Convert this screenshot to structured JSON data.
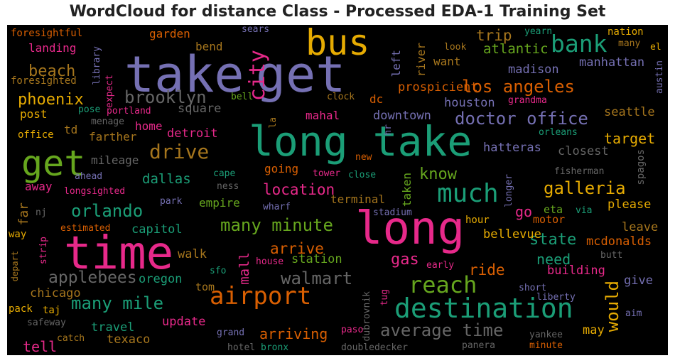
{
  "title": "WordCloud for distance Class - Processed EDA-1 Training Set",
  "colors": {
    "purple": "#7570b3",
    "teal": "#1b9e77",
    "pink": "#e7298a",
    "orange": "#d95f02",
    "green": "#66a61e",
    "gold": "#e6ab02",
    "brown": "#a6761d",
    "gray": "#666666"
  },
  "words": [
    {
      "text": "take",
      "color": "purple"
    },
    {
      "text": "get",
      "color": "purple"
    },
    {
      "text": "long take",
      "color": "teal"
    },
    {
      "text": "long",
      "color": "pink"
    },
    {
      "text": "time",
      "color": "pink"
    },
    {
      "text": "bus",
      "color": "gold"
    },
    {
      "text": "get",
      "color": "green"
    },
    {
      "text": "destination",
      "color": "teal"
    },
    {
      "text": "airport",
      "color": "orange"
    },
    {
      "text": "much",
      "color": "teal"
    },
    {
      "text": "bank",
      "color": "teal"
    },
    {
      "text": "reach",
      "color": "green"
    },
    {
      "text": "city",
      "color": "pink"
    },
    {
      "text": "drive",
      "color": "brown"
    },
    {
      "text": "doctor office",
      "color": "purple"
    },
    {
      "text": "los angeles",
      "color": "orange"
    },
    {
      "text": "average time",
      "color": "gray"
    },
    {
      "text": "many minute",
      "color": "green"
    },
    {
      "text": "walmart",
      "color": "gray"
    },
    {
      "text": "many mile",
      "color": "teal"
    },
    {
      "text": "orlando",
      "color": "teal"
    },
    {
      "text": "brooklyn",
      "color": "gray"
    },
    {
      "text": "galleria",
      "color": "gold"
    },
    {
      "text": "would",
      "color": "gold"
    },
    {
      "text": "applebees",
      "color": "gray"
    },
    {
      "text": "beach",
      "color": "brown"
    },
    {
      "text": "phoenix",
      "color": "gold"
    },
    {
      "text": "state",
      "color": "teal"
    },
    {
      "text": "location",
      "color": "pink"
    },
    {
      "text": "arrive",
      "color": "orange"
    },
    {
      "text": "ride",
      "color": "orange"
    },
    {
      "text": "trip",
      "color": "brown"
    },
    {
      "text": "atlantic",
      "color": "green"
    },
    {
      "text": "target",
      "color": "gold"
    },
    {
      "text": "know",
      "color": "green"
    },
    {
      "text": "gas",
      "color": "pink"
    },
    {
      "text": "need",
      "color": "teal"
    },
    {
      "text": "arriving",
      "color": "orange"
    },
    {
      "text": "dallas",
      "color": "teal"
    },
    {
      "text": "tell",
      "color": "pink"
    },
    {
      "text": "mall",
      "color": "pink"
    },
    {
      "text": "go",
      "color": "pink"
    },
    {
      "text": "prospicient",
      "color": "orange"
    },
    {
      "text": "manhattan",
      "color": "purple"
    },
    {
      "text": "madison",
      "color": "purple"
    },
    {
      "text": "houston",
      "color": "purple"
    },
    {
      "text": "downtown",
      "color": "purple"
    },
    {
      "text": "seattle",
      "color": "brown"
    },
    {
      "text": "hatteras",
      "color": "purple"
    },
    {
      "text": "closest",
      "color": "gray"
    },
    {
      "text": "square",
      "color": "gray"
    },
    {
      "text": "detroit",
      "color": "pink"
    },
    {
      "text": "capitol",
      "color": "teal"
    },
    {
      "text": "oregon",
      "color": "teal"
    },
    {
      "text": "station",
      "color": "green"
    },
    {
      "text": "walk",
      "color": "brown"
    },
    {
      "text": "building",
      "color": "pink"
    },
    {
      "text": "mcdonalds",
      "color": "orange"
    },
    {
      "text": "bellevue",
      "color": "gold"
    },
    {
      "text": "please",
      "color": "gold"
    },
    {
      "text": "leave",
      "color": "brown"
    },
    {
      "text": "give",
      "color": "purple"
    },
    {
      "text": "may",
      "color": "gold"
    },
    {
      "text": "travel",
      "color": "teal"
    },
    {
      "text": "texaco",
      "color": "brown"
    },
    {
      "text": "update",
      "color": "pink"
    },
    {
      "text": "chicago",
      "color": "brown"
    },
    {
      "text": "far",
      "color": "brown"
    },
    {
      "text": "away",
      "color": "pink"
    },
    {
      "text": "post",
      "color": "gold"
    },
    {
      "text": "td",
      "color": "brown"
    },
    {
      "text": "home",
      "color": "pink"
    },
    {
      "text": "farther",
      "color": "brown"
    },
    {
      "text": "mileage",
      "color": "gray"
    },
    {
      "text": "empire",
      "color": "green"
    },
    {
      "text": "going",
      "color": "orange"
    },
    {
      "text": "terminal",
      "color": "brown"
    },
    {
      "text": "taken",
      "color": "green"
    },
    {
      "text": "river",
      "color": "brown"
    },
    {
      "text": "left",
      "color": "purple"
    },
    {
      "text": "want",
      "color": "brown"
    },
    {
      "text": "garden",
      "color": "orange"
    },
    {
      "text": "bend",
      "color": "brown"
    },
    {
      "text": "landing",
      "color": "pink"
    },
    {
      "text": "foresightful",
      "color": "orange"
    },
    {
      "text": "foresighted",
      "color": "brown"
    },
    {
      "text": "library",
      "color": "purple"
    },
    {
      "text": "expect",
      "color": "pink"
    },
    {
      "text": "pose",
      "color": "teal"
    },
    {
      "text": "portland",
      "color": "pink"
    },
    {
      "text": "menage",
      "color": "gray"
    },
    {
      "text": "office",
      "color": "gold"
    },
    {
      "text": "sears",
      "color": "purple"
    },
    {
      "text": "bell",
      "color": "green"
    },
    {
      "text": "clock",
      "color": "brown"
    },
    {
      "text": "dc",
      "color": "orange"
    },
    {
      "text": "hr",
      "color": "purple"
    },
    {
      "text": "la",
      "color": "brown"
    },
    {
      "text": "mahal",
      "color": "pink"
    },
    {
      "text": "look",
      "color": "brown"
    },
    {
      "text": "yearn",
      "color": "teal"
    },
    {
      "text": "nation",
      "color": "gold"
    },
    {
      "text": "many",
      "color": "brown"
    },
    {
      "text": "el",
      "color": "gold"
    },
    {
      "text": "austin",
      "color": "purple"
    },
    {
      "text": "grandma",
      "color": "pink"
    },
    {
      "text": "orleans",
      "color": "teal"
    },
    {
      "text": "spagos",
      "color": "gray"
    },
    {
      "text": "fisherman",
      "color": "gray"
    },
    {
      "text": "longer",
      "color": "purple"
    },
    {
      "text": "eta",
      "color": "green"
    },
    {
      "text": "via",
      "color": "teal"
    },
    {
      "text": "motor",
      "color": "orange"
    },
    {
      "text": "hour",
      "color": "gold"
    },
    {
      "text": "new",
      "color": "orange"
    },
    {
      "text": "tower",
      "color": "pink"
    },
    {
      "text": "close",
      "color": "teal"
    },
    {
      "text": "cape",
      "color": "teal"
    },
    {
      "text": "ness",
      "color": "gray"
    },
    {
      "text": "wharf",
      "color": "purple"
    },
    {
      "text": "park",
      "color": "purple"
    },
    {
      "text": "stadium",
      "color": "purple"
    },
    {
      "text": "ahead",
      "color": "purple"
    },
    {
      "text": "longsighted",
      "color": "pink"
    },
    {
      "text": "nj",
      "color": "gray"
    },
    {
      "text": "way",
      "color": "gold"
    },
    {
      "text": "estimated",
      "color": "orange"
    },
    {
      "text": "depart",
      "color": "brown"
    },
    {
      "text": "strip",
      "color": "pink"
    },
    {
      "text": "house",
      "color": "pink"
    },
    {
      "text": "sfo",
      "color": "teal"
    },
    {
      "text": "tom",
      "color": "brown"
    },
    {
      "text": "early",
      "color": "pink"
    },
    {
      "text": "butt",
      "color": "gray"
    },
    {
      "text": "dubrovnik",
      "color": "gray"
    },
    {
      "text": "tug",
      "color": "pink"
    },
    {
      "text": "short",
      "color": "purple"
    },
    {
      "text": "liberty",
      "color": "purple"
    },
    {
      "text": "aim",
      "color": "purple"
    },
    {
      "text": "pack",
      "color": "gold"
    },
    {
      "text": "taj",
      "color": "gold"
    },
    {
      "text": "safeway",
      "color": "gray"
    },
    {
      "text": "catch",
      "color": "brown"
    },
    {
      "text": "grand",
      "color": "purple"
    },
    {
      "text": "paso",
      "color": "pink"
    },
    {
      "text": "yankee",
      "color": "gray"
    },
    {
      "text": "minute",
      "color": "orange"
    },
    {
      "text": "hotel",
      "color": "gray"
    },
    {
      "text": "bronx",
      "color": "teal"
    },
    {
      "text": "doubledecker",
      "color": "gray"
    },
    {
      "text": "panera",
      "color": "gray"
    }
  ]
}
